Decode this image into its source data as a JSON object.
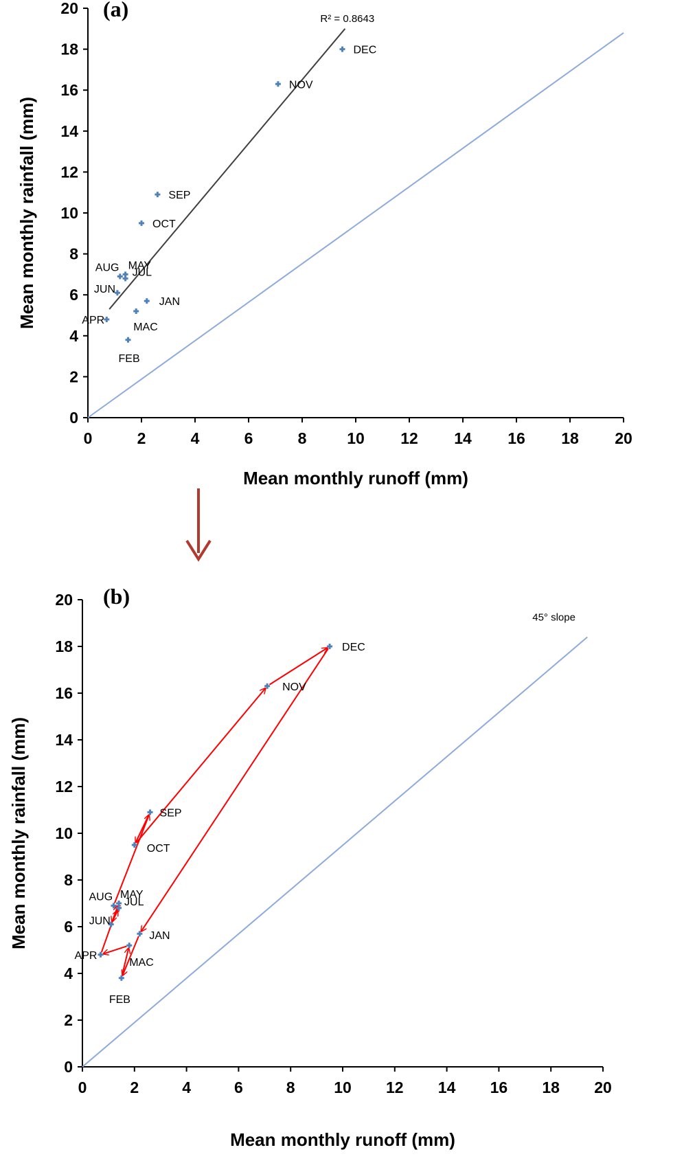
{
  "colors": {
    "point": "#4f81bd",
    "line45": "#8eaadb",
    "trend": "#404040",
    "path": "#ff0000",
    "down_arrow": "#b03a2e",
    "axis": "#000000"
  },
  "chart_data": [
    {
      "type": "scatter",
      "panel_label": "(a)",
      "xlabel": "Mean monthly runoff (mm)",
      "ylabel": "Mean monthly rainfall (mm)",
      "xlim": [
        0,
        20
      ],
      "ylim": [
        0,
        20
      ],
      "x_ticks": [
        "0",
        "2",
        "4",
        "6",
        "8",
        "10",
        "12",
        "14",
        "16",
        "18",
        "20"
      ],
      "y_ticks": [
        "0",
        "2",
        "4",
        "6",
        "8",
        "10",
        "12",
        "14",
        "16",
        "18",
        "20"
      ],
      "grid": false,
      "points": [
        {
          "label": "JAN",
          "x": 2.2,
          "y": 5.7
        },
        {
          "label": "FEB",
          "x": 1.5,
          "y": 3.8
        },
        {
          "label": "MAC",
          "x": 1.8,
          "y": 5.2
        },
        {
          "label": "APR",
          "x": 0.7,
          "y": 4.8
        },
        {
          "label": "MAY",
          "x": 1.4,
          "y": 7.0
        },
        {
          "label": "JUN",
          "x": 1.1,
          "y": 6.1
        },
        {
          "label": "JUL",
          "x": 1.4,
          "y": 6.8
        },
        {
          "label": "AUG",
          "x": 1.2,
          "y": 6.9
        },
        {
          "label": "SEP",
          "x": 2.6,
          "y": 10.9
        },
        {
          "label": "OCT",
          "x": 2.0,
          "y": 9.5
        },
        {
          "label": "NOV",
          "x": 7.1,
          "y": 16.3
        },
        {
          "label": "DEC",
          "x": 9.5,
          "y": 18.0
        }
      ],
      "trendline": {
        "x": [
          0.8,
          9.6
        ],
        "y": [
          5.3,
          19.0
        ],
        "r2_label": "R² = 0.8643"
      },
      "reference_line": {
        "x": [
          0,
          20
        ],
        "y": [
          0,
          18.8
        ]
      }
    },
    {
      "type": "scatter",
      "panel_label": "(b)",
      "xlabel": "Mean monthly runoff (mm)",
      "ylabel": "Mean monthly rainfall (mm)",
      "xlim": [
        0,
        20
      ],
      "ylim": [
        0,
        20
      ],
      "x_ticks": [
        "0",
        "2",
        "4",
        "6",
        "8",
        "10",
        "12",
        "14",
        "16",
        "18",
        "20"
      ],
      "y_ticks": [
        "0",
        "2",
        "4",
        "6",
        "8",
        "10",
        "12",
        "14",
        "16",
        "18",
        "20"
      ],
      "grid": false,
      "points": [
        {
          "label": "JAN",
          "x": 2.2,
          "y": 5.7
        },
        {
          "label": "FEB",
          "x": 1.5,
          "y": 3.8
        },
        {
          "label": "MAC",
          "x": 1.8,
          "y": 5.2
        },
        {
          "label": "APR",
          "x": 0.7,
          "y": 4.8
        },
        {
          "label": "MAY",
          "x": 1.4,
          "y": 7.0
        },
        {
          "label": "JUN",
          "x": 1.1,
          "y": 6.1
        },
        {
          "label": "JUL",
          "x": 1.4,
          "y": 6.8
        },
        {
          "label": "AUG",
          "x": 1.2,
          "y": 6.9
        },
        {
          "label": "SEP",
          "x": 2.6,
          "y": 10.9
        },
        {
          "label": "OCT",
          "x": 2.0,
          "y": 9.5
        },
        {
          "label": "NOV",
          "x": 7.1,
          "y": 16.3
        },
        {
          "label": "DEC",
          "x": 9.5,
          "y": 18.0
        }
      ],
      "path_order": [
        "DEC",
        "JAN",
        "FEB",
        "MAC",
        "APR",
        "MAY",
        "JUN",
        "JUL",
        "AUG",
        "SEP",
        "OCT",
        "NOV",
        "DEC"
      ],
      "reference_line": {
        "x": [
          0,
          19.4
        ],
        "y": [
          0,
          18.4
        ]
      },
      "reference_label": "45° slope"
    }
  ]
}
